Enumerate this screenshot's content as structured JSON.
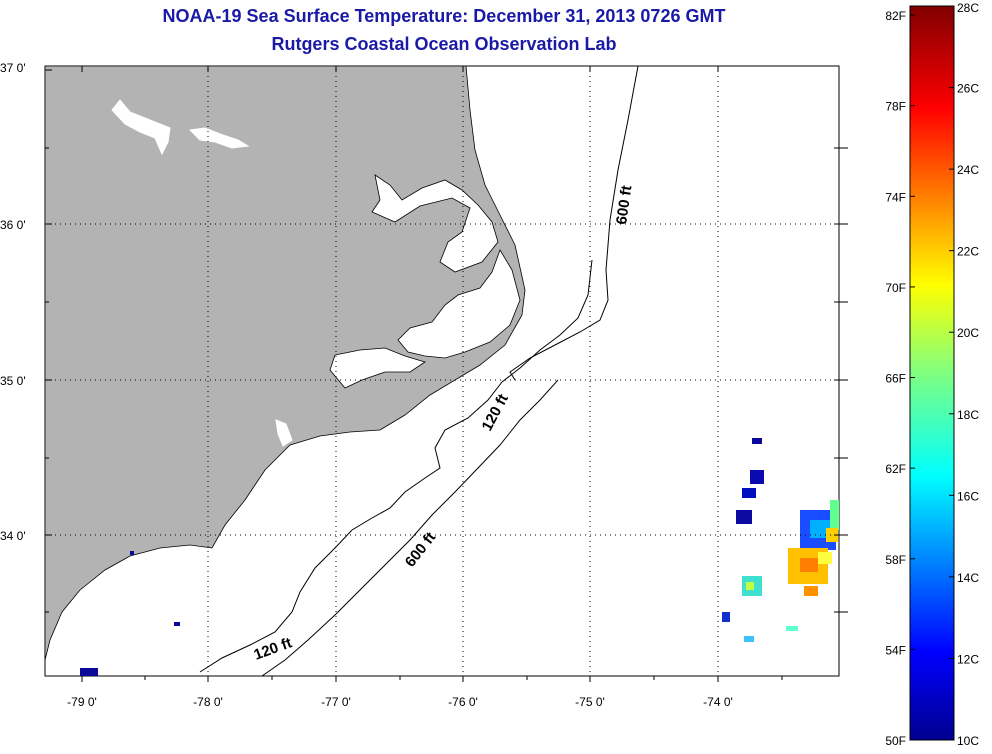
{
  "title": {
    "line1": "NOAA-19 Sea Surface Temperature:  December 31, 2013 0726 GMT",
    "line2": "Rutgers Coastal Ocean Observation Lab"
  },
  "map": {
    "lat_ticks": [
      "37 0'",
      "36 0'",
      "35 0'",
      "34 0'"
    ],
    "lon_ticks": [
      "-79 0'",
      "-78 0'",
      "-77 0'",
      "-76 0'",
      "-75 0'",
      "-74 0'"
    ],
    "contour_labels": [
      "600 ft",
      "120 ft",
      "600 ft",
      "120 ft"
    ],
    "land_color": "#b3b3b3",
    "water_color": "#ffffff",
    "grid": "dotted"
  },
  "colorbar": {
    "f_labels": [
      "82F",
      "78F",
      "74F",
      "70F",
      "66F",
      "62F",
      "58F",
      "54F",
      "50F"
    ],
    "c_labels": [
      "28C",
      "26C",
      "24C",
      "22C",
      "20C",
      "18C",
      "16C",
      "14C",
      "12C",
      "10C"
    ],
    "colormap": "jet",
    "range_c": [
      10,
      28
    ]
  }
}
